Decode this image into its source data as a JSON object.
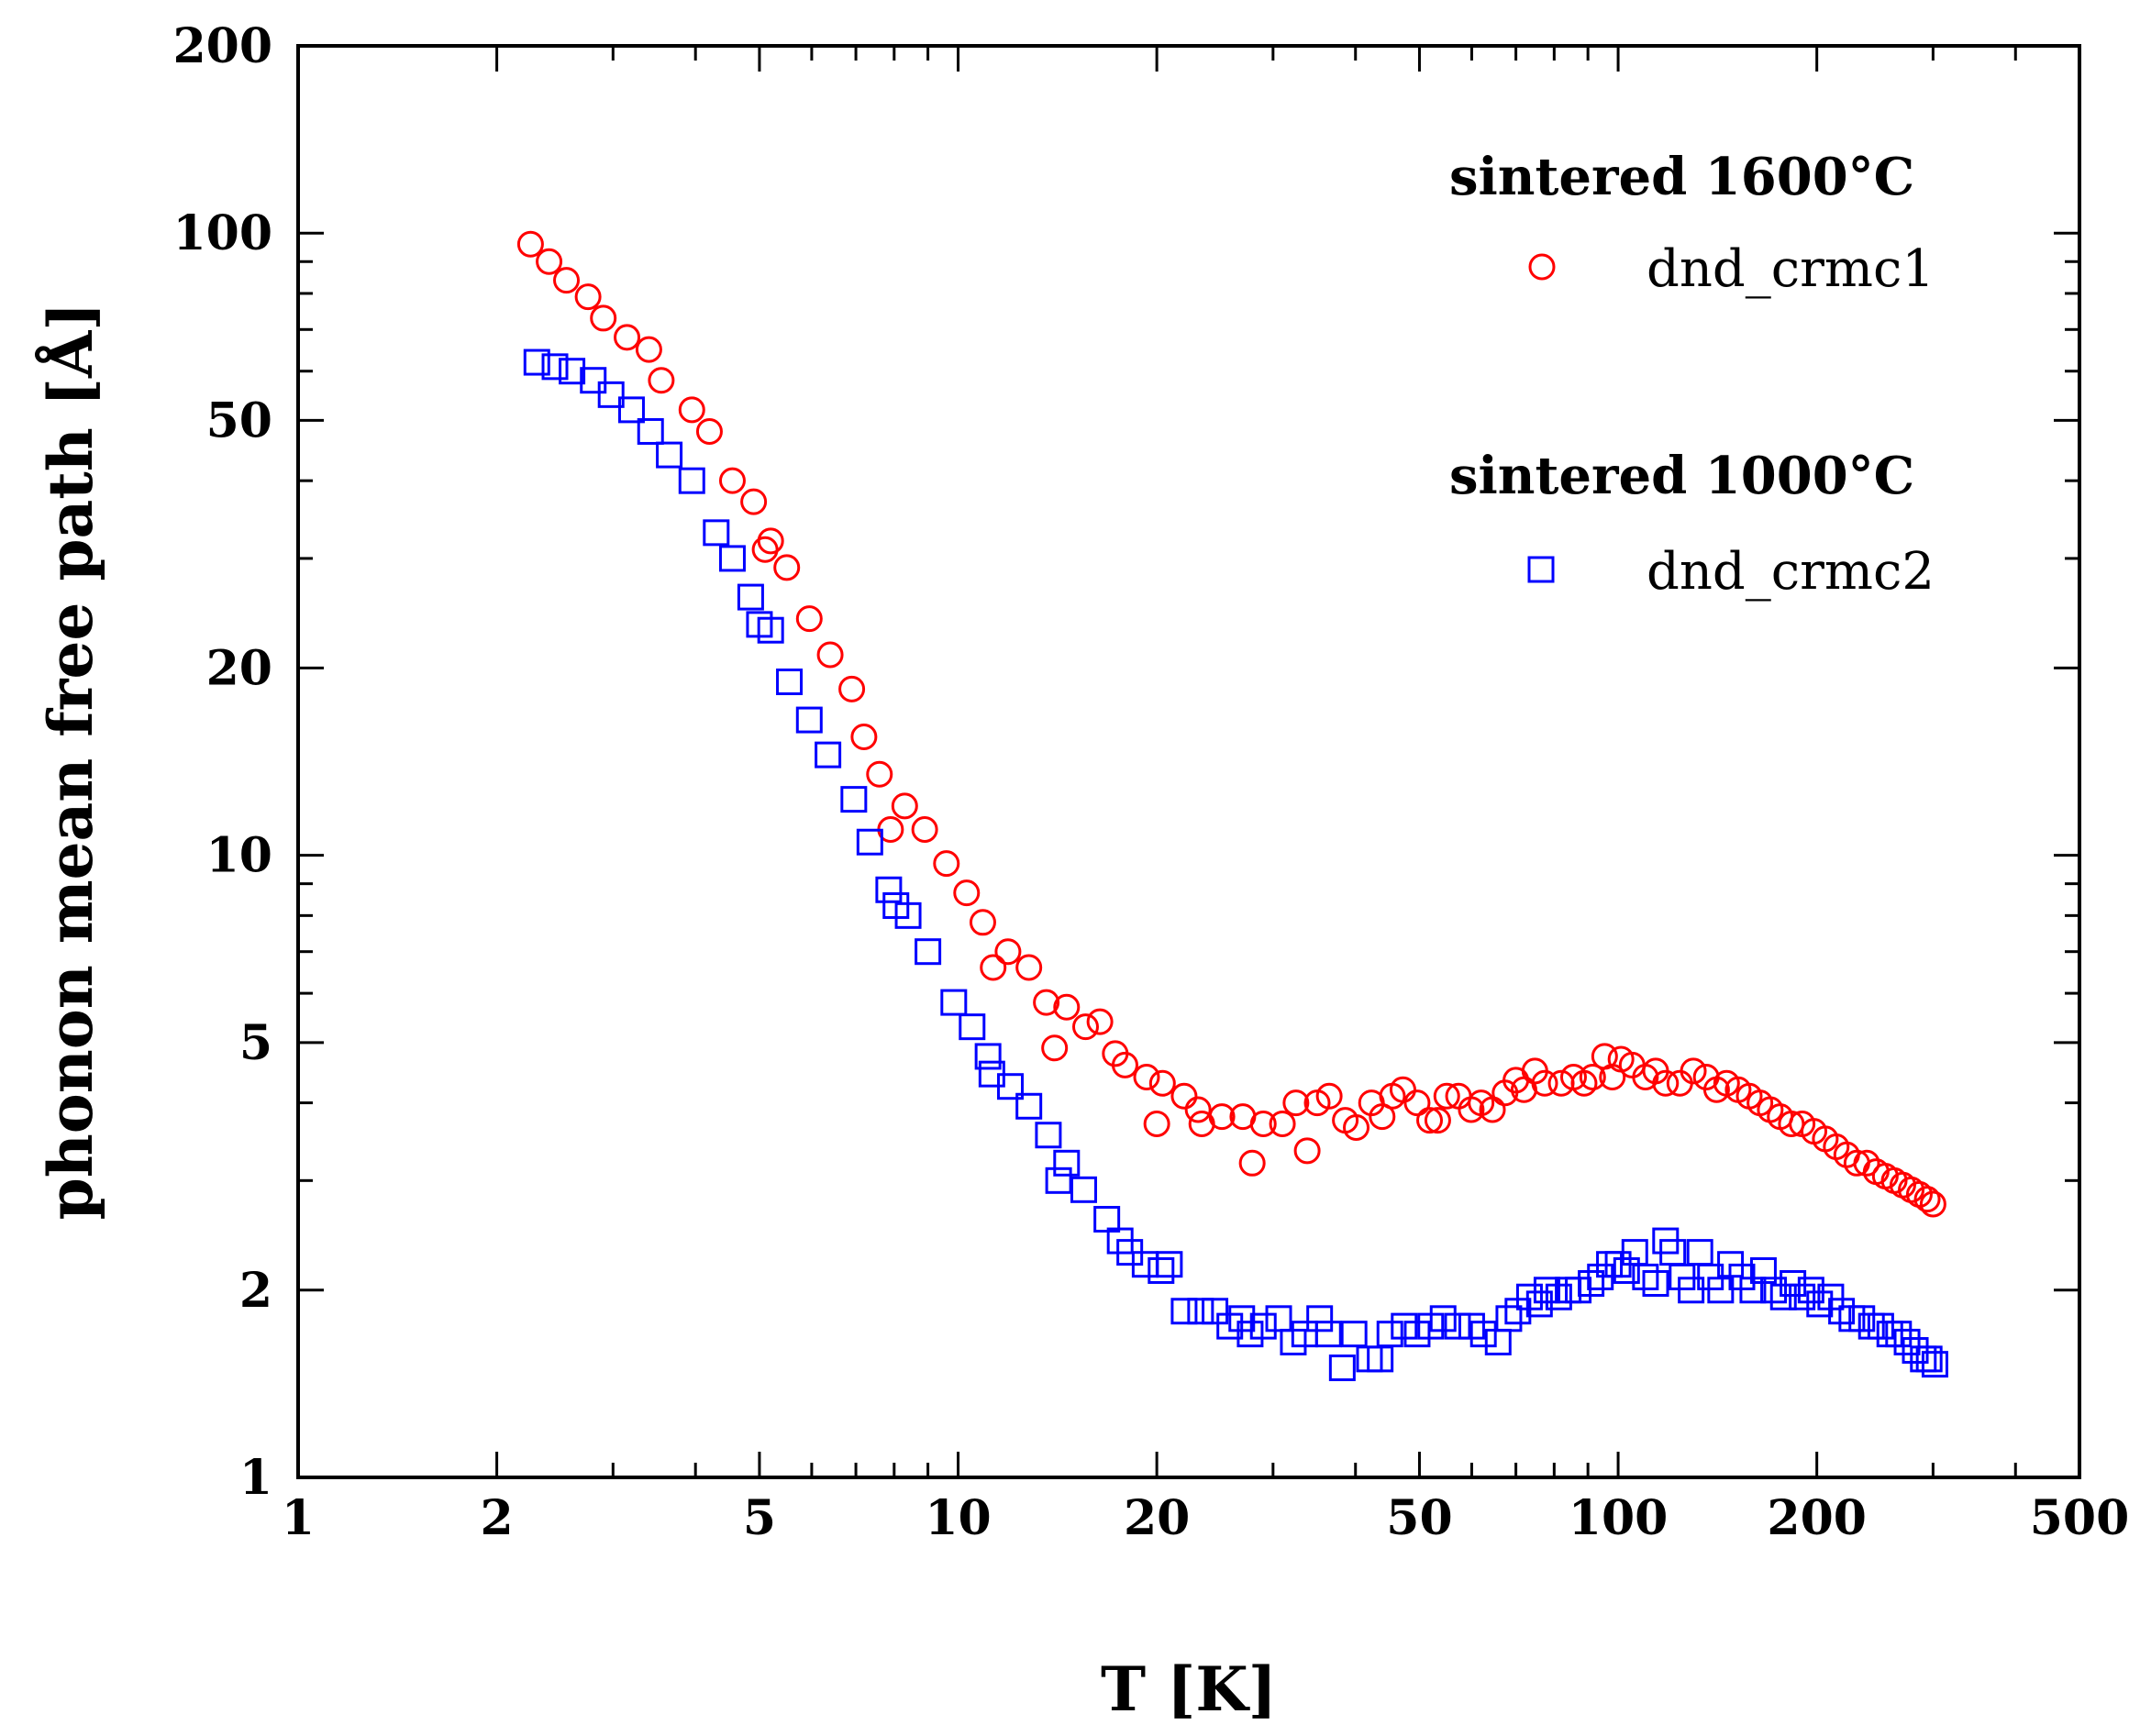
{
  "chart_data": {
    "type": "scatter",
    "xscale": "log",
    "yscale": "log",
    "xlabel": "T [K]",
    "ylabel": "phonon mean free path [Å]",
    "xlim": [
      1,
      500
    ],
    "ylim": [
      1,
      200
    ],
    "xticks": [
      1,
      2,
      5,
      10,
      20,
      50,
      100,
      200,
      500
    ],
    "xtick_labels": [
      "1",
      "2",
      "5",
      "10",
      "20",
      "50",
      "100",
      "200",
      "500"
    ],
    "yticks": [
      1,
      2,
      5,
      10,
      20,
      50,
      100,
      200
    ],
    "ytick_labels": [
      "1",
      "2",
      "5",
      "10",
      "20",
      "50",
      "100",
      "200"
    ],
    "legend_position": "top-right",
    "legend_groups": [
      {
        "heading": "sintered 1600°C",
        "marker": "circle",
        "series": "dnd_crmc1"
      },
      {
        "heading": "sintered 1000°C",
        "marker": "square",
        "series": "dnd_crmc2"
      }
    ],
    "series": [
      {
        "name": "dnd_crmc1",
        "marker": "circle",
        "color": "#ff0000",
        "points": [
          [
            2.25,
            96
          ],
          [
            2.4,
            90
          ],
          [
            2.55,
            84
          ],
          [
            2.75,
            79
          ],
          [
            2.9,
            73
          ],
          [
            3.15,
            68
          ],
          [
            3.4,
            65
          ],
          [
            3.55,
            58
          ],
          [
            3.95,
            52
          ],
          [
            4.2,
            48
          ],
          [
            4.55,
            40
          ],
          [
            4.9,
            37
          ],
          [
            5.1,
            31
          ],
          [
            5.2,
            32
          ],
          [
            5.5,
            29
          ],
          [
            5.95,
            24
          ],
          [
            6.4,
            21
          ],
          [
            6.9,
            18.5
          ],
          [
            7.2,
            15.5
          ],
          [
            7.6,
            13.5
          ],
          [
            7.9,
            11
          ],
          [
            8.3,
            12
          ],
          [
            8.9,
            11
          ],
          [
            9.6,
            9.7
          ],
          [
            10.3,
            8.7
          ],
          [
            10.9,
            7.8
          ],
          [
            11.3,
            6.6
          ],
          [
            11.9,
            7
          ],
          [
            12.8,
            6.6
          ],
          [
            13.6,
            5.8
          ],
          [
            14.0,
            4.9
          ],
          [
            14.6,
            5.7
          ],
          [
            15.6,
            5.3
          ],
          [
            16.4,
            5.4
          ],
          [
            17.3,
            4.8
          ],
          [
            17.9,
            4.6
          ],
          [
            19.3,
            4.4
          ],
          [
            20.0,
            3.7
          ],
          [
            20.4,
            4.3
          ],
          [
            22.0,
            4.1
          ],
          [
            23.1,
            3.9
          ],
          [
            23.4,
            3.7
          ],
          [
            25.1,
            3.8
          ],
          [
            27.0,
            3.8
          ],
          [
            27.9,
            3.2
          ],
          [
            29.0,
            3.7
          ],
          [
            31.0,
            3.7
          ],
          [
            32.5,
            4.0
          ],
          [
            33.8,
            3.35
          ],
          [
            35.0,
            4.0
          ],
          [
            36.5,
            4.1
          ],
          [
            38.6,
            3.75
          ],
          [
            40.1,
            3.65
          ],
          [
            42.3,
            4.0
          ],
          [
            43.9,
            3.8
          ],
          [
            45.5,
            4.1
          ],
          [
            47.2,
            4.2
          ],
          [
            49.6,
            4.0
          ],
          [
            51.8,
            3.75
          ],
          [
            53.3,
            3.75
          ],
          [
            55.0,
            4.1
          ],
          [
            57.3,
            4.1
          ],
          [
            59.9,
            3.9
          ],
          [
            62.0,
            4.0
          ],
          [
            64.5,
            3.9
          ],
          [
            67.4,
            4.15
          ],
          [
            70.0,
            4.35
          ],
          [
            72.0,
            4.2
          ],
          [
            74.8,
            4.5
          ],
          [
            77.4,
            4.3
          ],
          [
            82.0,
            4.3
          ],
          [
            85.6,
            4.4
          ],
          [
            88.8,
            4.3
          ],
          [
            91.5,
            4.4
          ],
          [
            95.4,
            4.75
          ],
          [
            98.0,
            4.4
          ],
          [
            101.0,
            4.7
          ],
          [
            105.0,
            4.6
          ],
          [
            110.0,
            4.4
          ],
          [
            114.0,
            4.5
          ],
          [
            118.0,
            4.3
          ],
          [
            124.0,
            4.3
          ],
          [
            130.0,
            4.5
          ],
          [
            136.0,
            4.4
          ],
          [
            141.0,
            4.2
          ],
          [
            146.0,
            4.3
          ],
          [
            152.0,
            4.2
          ],
          [
            158.0,
            4.1
          ],
          [
            164.0,
            4.0
          ],
          [
            170.0,
            3.9
          ],
          [
            176.0,
            3.8
          ],
          [
            183.0,
            3.7
          ],
          [
            190.0,
            3.7
          ],
          [
            198.0,
            3.6
          ],
          [
            206.0,
            3.5
          ],
          [
            214.0,
            3.4
          ],
          [
            222.0,
            3.3
          ],
          [
            230.0,
            3.2
          ],
          [
            238.0,
            3.2
          ],
          [
            246.0,
            3.1
          ],
          [
            254.0,
            3.05
          ],
          [
            262.0,
            3.0
          ],
          [
            270.0,
            2.95
          ],
          [
            278.0,
            2.9
          ],
          [
            286.0,
            2.85
          ],
          [
            294.0,
            2.8
          ],
          [
            300.0,
            2.75
          ]
        ]
      },
      {
        "name": "dnd_crmc2",
        "marker": "square",
        "color": "#0000ff",
        "points": [
          [
            2.3,
            62
          ],
          [
            2.45,
            61
          ],
          [
            2.6,
            60
          ],
          [
            2.8,
            58
          ],
          [
            2.98,
            55
          ],
          [
            3.2,
            52
          ],
          [
            3.42,
            48
          ],
          [
            3.65,
            44
          ],
          [
            3.95,
            40
          ],
          [
            4.3,
            33
          ],
          [
            4.55,
            30
          ],
          [
            4.85,
            26
          ],
          [
            5.0,
            23.5
          ],
          [
            5.2,
            23
          ],
          [
            5.55,
            19
          ],
          [
            5.95,
            16.5
          ],
          [
            6.35,
            14.5
          ],
          [
            6.95,
            12.3
          ],
          [
            7.35,
            10.5
          ],
          [
            7.85,
            8.8
          ],
          [
            8.05,
            8.3
          ],
          [
            8.4,
            8
          ],
          [
            9.0,
            7
          ],
          [
            9.85,
            5.8
          ],
          [
            10.5,
            5.3
          ],
          [
            11.1,
            4.75
          ],
          [
            11.25,
            4.45
          ],
          [
            12.0,
            4.25
          ],
          [
            12.8,
            3.95
          ],
          [
            13.7,
            3.55
          ],
          [
            14.2,
            3.0
          ],
          [
            14.6,
            3.2
          ],
          [
            15.5,
            2.9
          ],
          [
            16.8,
            2.6
          ],
          [
            17.6,
            2.4
          ],
          [
            18.2,
            2.3
          ],
          [
            19.2,
            2.2
          ],
          [
            20.3,
            2.15
          ],
          [
            20.9,
            2.2
          ],
          [
            22.0,
            1.85
          ],
          [
            23.3,
            1.85
          ],
          [
            24.5,
            1.85
          ],
          [
            25.8,
            1.75
          ],
          [
            26.9,
            1.8
          ],
          [
            27.7,
            1.7
          ],
          [
            29.0,
            1.75
          ],
          [
            30.6,
            1.8
          ],
          [
            32.2,
            1.65
          ],
          [
            33.5,
            1.7
          ],
          [
            35.3,
            1.8
          ],
          [
            36.4,
            1.7
          ],
          [
            38.2,
            1.5
          ],
          [
            39.8,
            1.7
          ],
          [
            42.0,
            1.55
          ],
          [
            43.6,
            1.55
          ],
          [
            45.1,
            1.7
          ],
          [
            47.4,
            1.75
          ],
          [
            49.6,
            1.7
          ],
          [
            52.0,
            1.75
          ],
          [
            54.3,
            1.8
          ],
          [
            57.1,
            1.75
          ],
          [
            60.0,
            1.75
          ],
          [
            62.5,
            1.7
          ],
          [
            65.8,
            1.65
          ],
          [
            68.3,
            1.8
          ],
          [
            70.5,
            1.85
          ],
          [
            73.4,
            1.95
          ],
          [
            76.0,
            1.9
          ],
          [
            78.0,
            2.0
          ],
          [
            81.3,
            1.95
          ],
          [
            84.0,
            2.0
          ],
          [
            87.0,
            2.0
          ],
          [
            91.0,
            2.05
          ],
          [
            94.0,
            2.1
          ],
          [
            97.0,
            2.2
          ],
          [
            100.0,
            2.2
          ],
          [
            103.0,
            2.15
          ],
          [
            106.0,
            2.3
          ],
          [
            110.0,
            2.1
          ],
          [
            114.0,
            2.05
          ],
          [
            118.0,
            2.4
          ],
          [
            121.0,
            2.3
          ],
          [
            125.0,
            2.1
          ],
          [
            129.0,
            2.0
          ],
          [
            133.0,
            2.3
          ],
          [
            138.0,
            2.1
          ],
          [
            143.0,
            2.0
          ],
          [
            148.0,
            2.2
          ],
          [
            154.0,
            2.1
          ],
          [
            160.0,
            2.0
          ],
          [
            166.0,
            2.15
          ],
          [
            172.0,
            2.0
          ],
          [
            178.0,
            1.95
          ],
          [
            184.0,
            2.05
          ],
          [
            190.0,
            1.95
          ],
          [
            196.0,
            2.0
          ],
          [
            202.0,
            1.9
          ],
          [
            210.0,
            1.95
          ],
          [
            218.0,
            1.85
          ],
          [
            226.0,
            1.8
          ],
          [
            234.0,
            1.8
          ],
          [
            242.0,
            1.75
          ],
          [
            250.0,
            1.75
          ],
          [
            258.0,
            1.7
          ],
          [
            266.0,
            1.7
          ],
          [
            274.0,
            1.65
          ],
          [
            282.0,
            1.6
          ],
          [
            290.0,
            1.55
          ],
          [
            296.0,
            1.55
          ],
          [
            302.0,
            1.52
          ]
        ]
      }
    ]
  }
}
